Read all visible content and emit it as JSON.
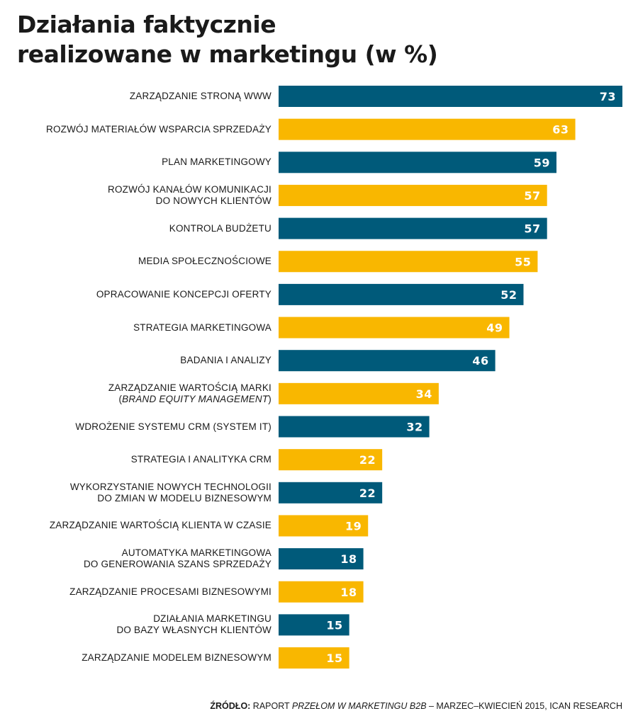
{
  "chart_data": {
    "type": "bar",
    "orientation": "horizontal",
    "title": [
      "Działania faktycznie",
      "realizowane w marketingu (w %)"
    ],
    "colors": [
      "#005a7a",
      "#f9b700"
    ],
    "xlim": [
      0,
      73
    ],
    "grid": false,
    "categories": [
      {
        "lines": [
          "ZARZĄDZANIE STRONĄ WWW"
        ]
      },
      {
        "lines": [
          "ROZWÓJ MATERIAŁÓW WSPARCIA SPRZEDAŻY"
        ]
      },
      {
        "lines": [
          "PLAN MARKETINGOWY"
        ]
      },
      {
        "lines": [
          "ROZWÓJ KANAŁÓW KOMUNIKACJI",
          "DO NOWYCH KLIENTÓW"
        ]
      },
      {
        "lines": [
          "KONTROLA BUDŻETU"
        ]
      },
      {
        "lines": [
          "MEDIA SPOŁECZNOŚCIOWE"
        ]
      },
      {
        "lines": [
          "OPRACOWANIE KONCEPCJI OFERTY"
        ]
      },
      {
        "lines": [
          "STRATEGIA MARKETINGOWA"
        ]
      },
      {
        "lines": [
          "BADANIA I ANALIZY"
        ]
      },
      {
        "lines": [
          "ZARZĄDZANIE WARTOŚCIĄ MARKI",
          [
            {
              "text": "("
            },
            {
              "text": "BRAND EQUITY MANAGEMENT",
              "italic": true
            },
            {
              "text": ")"
            }
          ]
        ]
      },
      {
        "lines": [
          "WDROŻENIE SYSTEMU CRM (SYSTEM IT)"
        ]
      },
      {
        "lines": [
          "STRATEGIA I ANALITYKA CRM"
        ]
      },
      {
        "lines": [
          "WYKORZYSTANIE NOWYCH TECHNOLOGII",
          "DO ZMIAN W MODELU BIZNESOWYM"
        ]
      },
      {
        "lines": [
          "ZARZĄDZANIE WARTOŚCIĄ KLIENTA W CZASIE"
        ]
      },
      {
        "lines": [
          "AUTOMATYKA MARKETINGOWA",
          "DO GENEROWANIA SZANS SPRZEDAŻY"
        ]
      },
      {
        "lines": [
          "ZARZĄDZANIE PROCESAMI BIZNESOWYMI"
        ]
      },
      {
        "lines": [
          "DZIAŁANIA MARKETINGU",
          "DO BAZY WŁASNYCH KLIENTÓW"
        ]
      },
      {
        "lines": [
          "ZARZĄDZANIE MODELEM BIZNESOWYM"
        ]
      }
    ],
    "values": [
      73,
      63,
      59,
      57,
      57,
      55,
      52,
      49,
      46,
      34,
      32,
      22,
      22,
      19,
      18,
      18,
      15,
      15
    ]
  },
  "footer": {
    "source_label": "ŹRÓDŁO:",
    "prefix": " RAPORT ",
    "report_title": "PRZEŁOM W MARKETINGU B2B",
    "suffix": " – MARZEC–KWIECIEŃ 2015, ICAN RESEARCH"
  }
}
